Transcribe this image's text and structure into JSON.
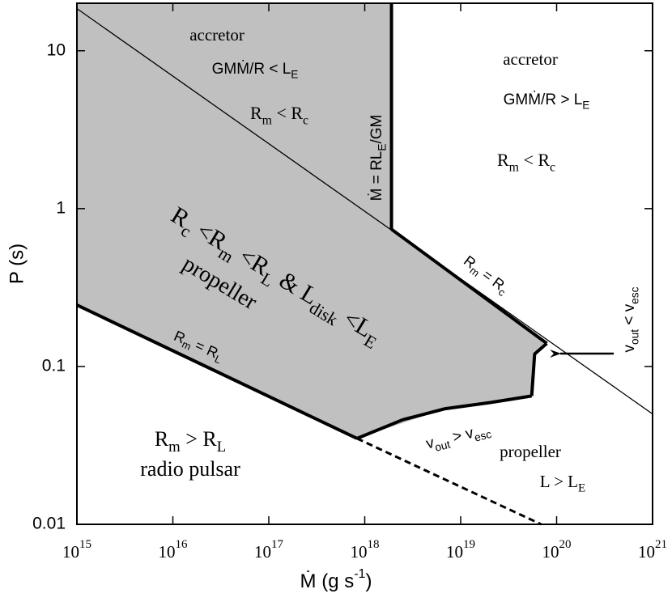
{
  "chart_data": {
    "type": "region",
    "xlabel": [
      "Ṁ (g s",
      "-1",
      ")"
    ],
    "ylabel": "P (s)",
    "xlog": true,
    "ylog": true,
    "xlim": [
      1000000000000000.0,
      1e+21
    ],
    "ylim": [
      0.01,
      20
    ],
    "xticks": [
      {
        "value": 1000000000000000.0,
        "label": [
          "10",
          "15"
        ]
      },
      {
        "value": 1e+16,
        "label": [
          "10",
          "16"
        ]
      },
      {
        "value": 1e+17,
        "label": [
          "10",
          "17"
        ]
      },
      {
        "value": 1e+18,
        "label": [
          "10",
          "18"
        ]
      },
      {
        "value": 1e+19,
        "label": [
          "10",
          "19"
        ]
      },
      {
        "value": 1e+20,
        "label": [
          "10",
          "20"
        ]
      },
      {
        "value": 1e+21,
        "label": [
          "10",
          "21"
        ]
      }
    ],
    "yticks": [
      0.01,
      0.1,
      1,
      10
    ],
    "region": {
      "color": "#c0c0c0",
      "x": [
        1000000000000000.0,
        1.9e+18,
        1.9e+18,
        7.9e+19,
        5.9e+19,
        5.5e+19,
        6.9e+18,
        8.3e+17,
        1000000000000000.0
      ],
      "values": [
        20,
        20,
        0.74,
        0.14,
        0.12,
        0.065,
        0.054,
        0.035,
        0.245
      ]
    },
    "lines": [
      {
        "style": "thin",
        "x": [
          1000000000000000.0,
          1e+21
        ],
        "values": [
          18.5,
          0.05
        ]
      },
      {
        "style": "thick",
        "x": [
          1.9e+18,
          1.9e+18
        ],
        "values": [
          20,
          0.74
        ]
      },
      {
        "style": "thick",
        "x": [
          1.9e+18,
          7.9e+19
        ],
        "values": [
          0.74,
          0.14
        ]
      },
      {
        "style": "thick",
        "x": [
          7.9e+19,
          5.9e+19,
          5.5e+19
        ],
        "values": [
          0.14,
          0.12,
          0.065
        ]
      },
      {
        "style": "thick",
        "x": [
          5.5e+19,
          2e+19,
          6.9e+18,
          2.5e+18,
          8.3e+17
        ],
        "values": [
          0.065,
          0.059,
          0.054,
          0.046,
          0.035
        ]
      },
      {
        "style": "thick",
        "x": [
          1000000000000000.0,
          8.3e+17
        ],
        "values": [
          0.245,
          0.035
        ]
      },
      {
        "style": "dashed",
        "x": [
          8.3e+17,
          6.9e+19
        ],
        "values": [
          0.035,
          0.01
        ]
      }
    ],
    "annotations": [
      [
        "accretor"
      ],
      [
        "GMṀ/R < L",
        "E"
      ],
      [
        "R",
        "m",
        " < R",
        "c"
      ],
      [
        "accretor"
      ],
      [
        "GMṀ/R > L",
        "E"
      ],
      [
        "R",
        "m",
        " < R",
        "c"
      ],
      [
        "Ṁ = RL",
        "E",
        "/GM"
      ],
      [
        "R",
        "c",
        " <R",
        "m",
        " <R",
        "L",
        " & L",
        "disk",
        " <L",
        "E"
      ],
      [
        "propeller"
      ],
      [
        "R",
        "m",
        " = R",
        "L"
      ],
      [
        "R",
        "m",
        " = R",
        "c"
      ],
      [
        "v",
        "out",
        " < v",
        "esc"
      ],
      [
        "v",
        "out",
        " > v",
        "esc"
      ],
      [
        "propeller"
      ],
      [
        "L > L",
        "E"
      ],
      [
        "R",
        "m",
        " > R",
        "L"
      ],
      [
        "radio pulsar"
      ]
    ]
  }
}
